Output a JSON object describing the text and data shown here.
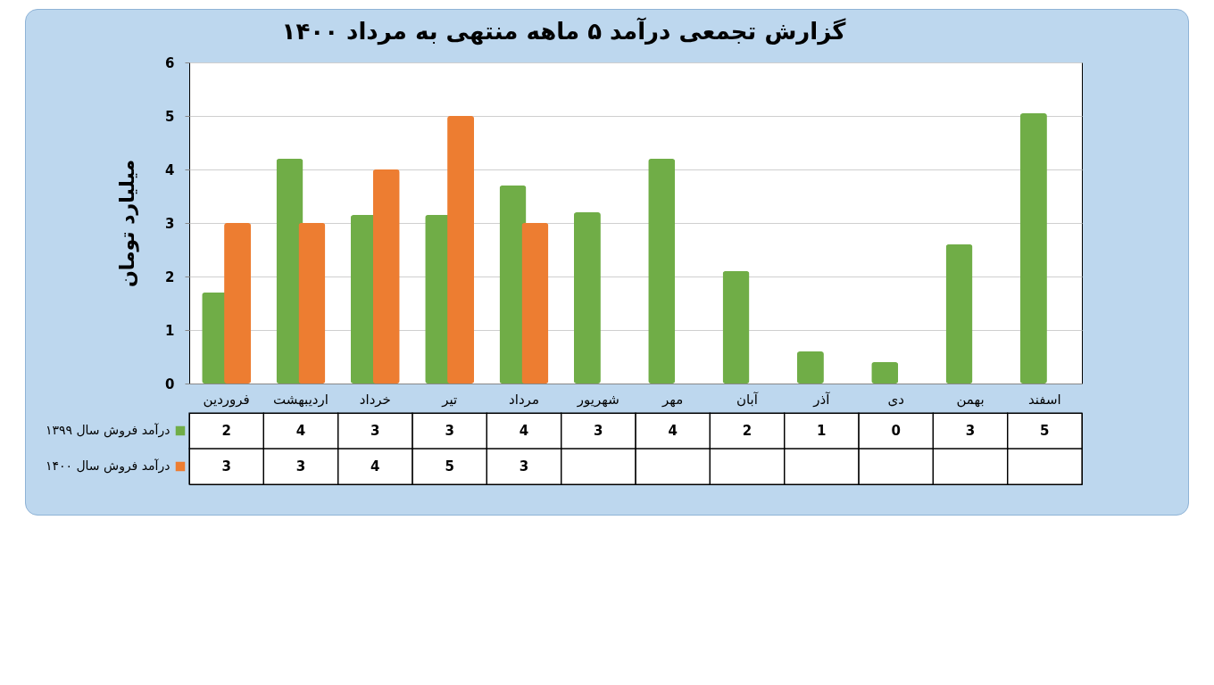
{
  "chart_data": {
    "type": "bar",
    "title": "گزارش تجمعی درآمد ۵ ماهه منتهی به مرداد ۱۴۰۰",
    "ylabel": "میلیارد تومان",
    "categories": [
      "فروردین",
      "اردیبهشت",
      "خرداد",
      "تیر",
      "مرداد",
      "شهریور",
      "مهر",
      "آبان",
      "آذر",
      "دی",
      "بهمن",
      "اسفند"
    ],
    "series": [
      {
        "name": "درآمد فروش سال ۱۳۹۹",
        "color": "#70ad47",
        "values": [
          1.7,
          4.2,
          3.15,
          3.15,
          3.7,
          3.2,
          4.2,
          2.1,
          0.6,
          0.4,
          2.6,
          5.05
        ],
        "value_labels": [
          "2",
          "4",
          "3",
          "3",
          "4",
          "3",
          "4",
          "2",
          "1",
          "0",
          "3",
          "5"
        ]
      },
      {
        "name": "درآمد فروش سال ۱۴۰۰",
        "color": "#ed7d31",
        "values": [
          3,
          3,
          4,
          5,
          3,
          null,
          null,
          null,
          null,
          null,
          null,
          null
        ],
        "value_labels": [
          "3",
          "3",
          "4",
          "5",
          "3",
          null,
          null,
          null,
          null,
          null,
          null,
          null
        ]
      }
    ],
    "ylim": [
      0,
      6
    ],
    "yticks": [
      0,
      1,
      2,
      3,
      4,
      5,
      6
    ],
    "grid": "y",
    "legend": "bottom"
  }
}
